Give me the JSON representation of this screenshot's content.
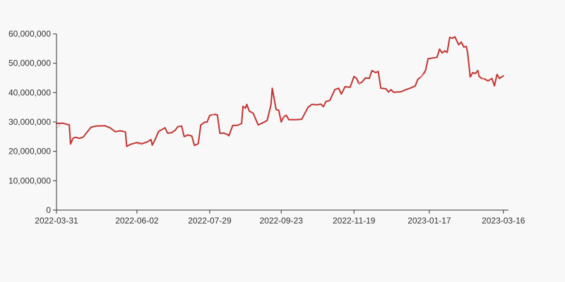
{
  "chart_data": {
    "type": "line",
    "title": "",
    "xlabel": "",
    "ylabel": "",
    "x_tick_labels": [
      "2022-03-31",
      "2022-06-02",
      "2022-07-29",
      "2022-09-23",
      "2022-11-19",
      "2023-01-17",
      "2023-03-16"
    ],
    "y_tick_labels": [
      "0",
      "10,000,000",
      "20,000,000",
      "30,000,000",
      "40,000,000",
      "50,000,000",
      "60,000,000"
    ],
    "ylim": [
      0,
      60000000
    ],
    "xlim": [
      "2022-03-31",
      "2023-03-20"
    ],
    "grid": false,
    "legend": "none",
    "colors": {
      "main": "#c23531",
      "secondary": "#e6a3a0",
      "axis": "#333333",
      "background": "#f8f8f8"
    },
    "series": [
      {
        "color": "#c23531",
        "points": [
          [
            "2022-03-31",
            29500000
          ],
          [
            "2022-04-05",
            29600000
          ],
          [
            "2022-04-08",
            29200000
          ],
          [
            "2022-04-10",
            29000000
          ],
          [
            "2022-04-11",
            22500000
          ],
          [
            "2022-04-13",
            24500000
          ],
          [
            "2022-04-15",
            24800000
          ],
          [
            "2022-04-18",
            24400000
          ],
          [
            "2022-04-21",
            24900000
          ],
          [
            "2022-04-24",
            26600000
          ],
          [
            "2022-04-27",
            28200000
          ],
          [
            "2022-05-01",
            28600000
          ],
          [
            "2022-05-08",
            28700000
          ],
          [
            "2022-05-12",
            28000000
          ],
          [
            "2022-05-16",
            26700000
          ],
          [
            "2022-05-20",
            27000000
          ],
          [
            "2022-05-24",
            26600000
          ],
          [
            "2022-05-25",
            21700000
          ],
          [
            "2022-05-28",
            22400000
          ],
          [
            "2022-06-02",
            23000000
          ],
          [
            "2022-06-06",
            22600000
          ],
          [
            "2022-06-10",
            23200000
          ],
          [
            "2022-06-13",
            24000000
          ],
          [
            "2022-06-14",
            22100000
          ],
          [
            "2022-06-16",
            23800000
          ],
          [
            "2022-06-19",
            26800000
          ],
          [
            "2022-06-22",
            27500000
          ],
          [
            "2022-06-24",
            28000000
          ],
          [
            "2022-06-26",
            26200000
          ],
          [
            "2022-06-29",
            26300000
          ],
          [
            "2022-07-02",
            27200000
          ],
          [
            "2022-07-04",
            28400000
          ],
          [
            "2022-07-07",
            28600000
          ],
          [
            "2022-07-09",
            25000000
          ],
          [
            "2022-07-12",
            25600000
          ],
          [
            "2022-07-15",
            25200000
          ],
          [
            "2022-07-17",
            22000000
          ],
          [
            "2022-07-20",
            22600000
          ],
          [
            "2022-07-22",
            29000000
          ],
          [
            "2022-07-25",
            29900000
          ],
          [
            "2022-07-27",
            30000000
          ],
          [
            "2022-07-29",
            32200000
          ],
          [
            "2022-08-01",
            32600000
          ],
          [
            "2022-08-04",
            32400000
          ],
          [
            "2022-08-06",
            26100000
          ],
          [
            "2022-08-09",
            26200000
          ],
          [
            "2022-08-12",
            25700000
          ],
          [
            "2022-08-13",
            25300000
          ],
          [
            "2022-08-16",
            28800000
          ],
          [
            "2022-08-20",
            28900000
          ],
          [
            "2022-08-23",
            29500000
          ],
          [
            "2022-08-24",
            35300000
          ],
          [
            "2022-08-26",
            34700000
          ],
          [
            "2022-08-27",
            36000000
          ],
          [
            "2022-08-29",
            33700000
          ],
          [
            "2022-09-01",
            33000000
          ],
          [
            "2022-09-05",
            29000000
          ],
          [
            "2022-09-08",
            29600000
          ],
          [
            "2022-09-12",
            30500000
          ],
          [
            "2022-09-15",
            35900000
          ],
          [
            "2022-09-16",
            41500000
          ],
          [
            "2022-09-19",
            34200000
          ],
          [
            "2022-09-21",
            34000000
          ],
          [
            "2022-09-23",
            30000000
          ],
          [
            "2022-09-25",
            31800000
          ],
          [
            "2022-09-27",
            32200000
          ],
          [
            "2022-09-29",
            30800000
          ],
          [
            "2022-10-04",
            30800000
          ],
          [
            "2022-10-09",
            30900000
          ],
          [
            "2022-10-14",
            35000000
          ],
          [
            "2022-10-17",
            36000000
          ],
          [
            "2022-10-21",
            35800000
          ],
          [
            "2022-10-24",
            36100000
          ],
          [
            "2022-10-26",
            35200000
          ],
          [
            "2022-10-28",
            37000000
          ],
          [
            "2022-10-31",
            37300000
          ],
          [
            "2022-11-04",
            41000000
          ],
          [
            "2022-11-07",
            41500000
          ],
          [
            "2022-11-09",
            39500000
          ],
          [
            "2022-11-12",
            42000000
          ],
          [
            "2022-11-16",
            41800000
          ],
          [
            "2022-11-19",
            45500000
          ],
          [
            "2022-11-21",
            44800000
          ],
          [
            "2022-11-23",
            43000000
          ],
          [
            "2022-11-25",
            43500000
          ],
          [
            "2022-11-28",
            45000000
          ],
          [
            "2022-12-01",
            44800000
          ],
          [
            "2022-12-03",
            47500000
          ],
          [
            "2022-12-06",
            46800000
          ],
          [
            "2022-12-08",
            47200000
          ],
          [
            "2022-12-10",
            41500000
          ],
          [
            "2022-12-14",
            41300000
          ],
          [
            "2022-12-16",
            40200000
          ],
          [
            "2022-12-18",
            41000000
          ],
          [
            "2022-12-20",
            40100000
          ],
          [
            "2022-12-26",
            40300000
          ],
          [
            "2022-12-29",
            40900000
          ],
          [
            "2023-01-02",
            41500000
          ],
          [
            "2023-01-06",
            42300000
          ],
          [
            "2023-01-08",
            44500000
          ],
          [
            "2023-01-11",
            45500000
          ],
          [
            "2023-01-14",
            47500000
          ],
          [
            "2023-01-16",
            51500000
          ],
          [
            "2023-01-20",
            51800000
          ],
          [
            "2023-01-23",
            52000000
          ],
          [
            "2023-01-25",
            54800000
          ],
          [
            "2023-01-27",
            53500000
          ],
          [
            "2023-01-29",
            54200000
          ],
          [
            "2023-01-31",
            53700000
          ],
          [
            "2023-02-02",
            58800000
          ],
          [
            "2023-02-04",
            58500000
          ],
          [
            "2023-02-06",
            59000000
          ],
          [
            "2023-02-09",
            56300000
          ],
          [
            "2023-02-11",
            57200000
          ],
          [
            "2023-02-13",
            55500000
          ],
          [
            "2023-02-15",
            55700000
          ],
          [
            "2023-02-16",
            53600000
          ],
          [
            "2023-02-18",
            45300000
          ],
          [
            "2023-02-20",
            46800000
          ],
          [
            "2023-02-22",
            46500000
          ],
          [
            "2023-02-24",
            47500000
          ],
          [
            "2023-02-25",
            45500000
          ],
          [
            "2023-02-27",
            44800000
          ],
          [
            "2023-03-01",
            44700000
          ],
          [
            "2023-03-04",
            44000000
          ],
          [
            "2023-03-07",
            44800000
          ],
          [
            "2023-03-09",
            42300000
          ],
          [
            "2023-03-11",
            46200000
          ],
          [
            "2023-03-13",
            44800000
          ],
          [
            "2023-03-16",
            45700000
          ]
        ]
      },
      {
        "color": "#e6a3a0",
        "points": [
          [
            "2022-03-31",
            27800000
          ],
          [
            "2022-04-03",
            29100000
          ],
          [
            "2022-06-02",
            22600000
          ],
          [
            "2022-06-06",
            22300000
          ],
          [
            "2022-07-31",
            32600000
          ],
          [
            "2022-08-03",
            32900000
          ],
          [
            "2022-09-23",
            31000000
          ],
          [
            "2022-09-26",
            32500000
          ],
          [
            "2022-11-21",
            43400000
          ],
          [
            "2022-11-24",
            43000000
          ],
          [
            "2023-01-10",
            45000000
          ],
          [
            "2023-01-14",
            46800000
          ],
          [
            "2023-02-27",
            45200000
          ],
          [
            "2023-03-01",
            44300000
          ]
        ]
      }
    ]
  }
}
